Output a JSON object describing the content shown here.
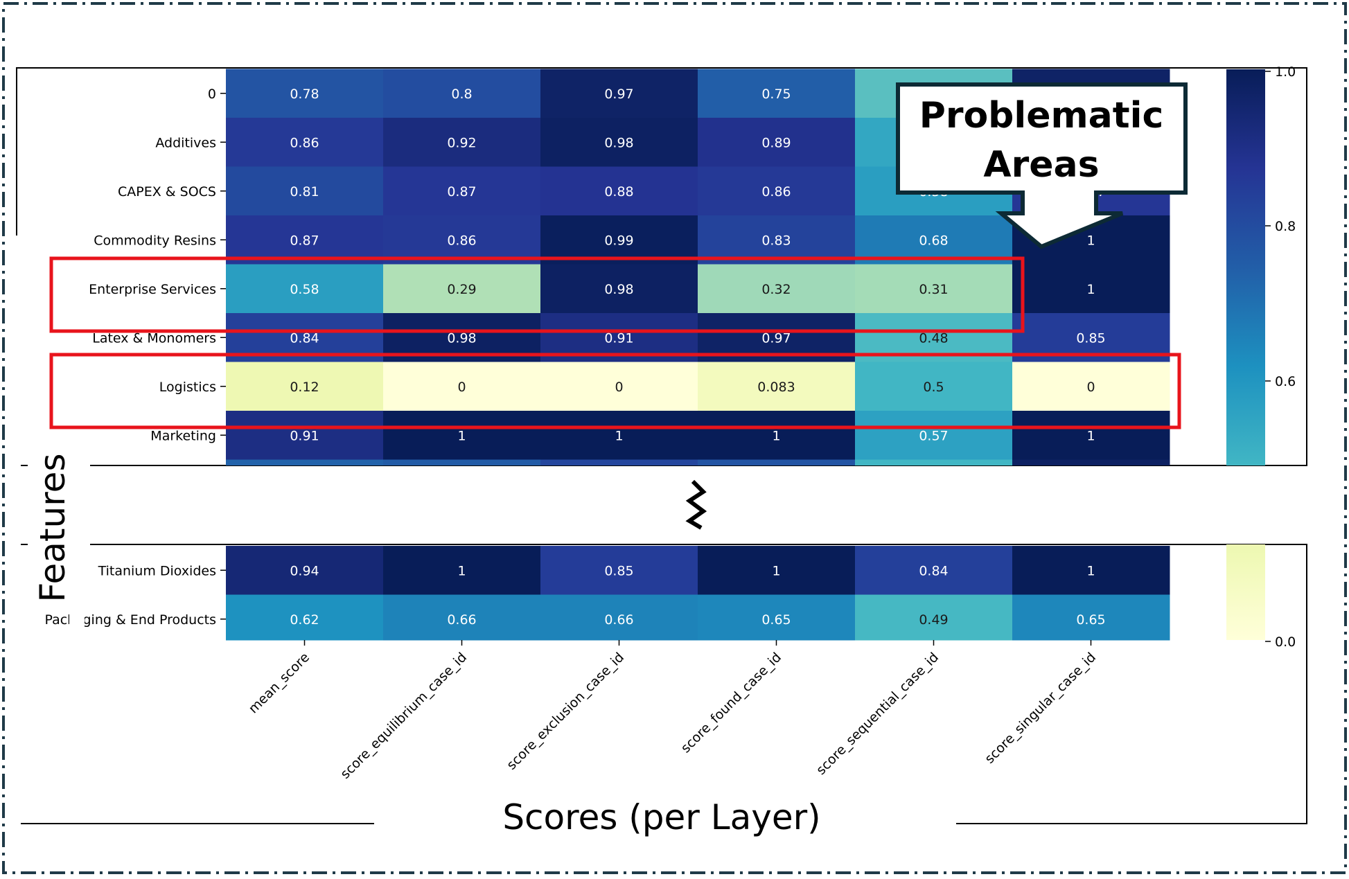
{
  "chart_data": {
    "type": "heatmap",
    "xlabel": "Scores (per Layer)",
    "ylabel": "Features",
    "columns": [
      "mean_score",
      "score_equilibrium_case_id",
      "score_exclusion_case_id",
      "score_found_case_id",
      "score_sequential_case_id",
      "score_singular_case_id"
    ],
    "rows_top": [
      {
        "label": "0",
        "values": [
          0.78,
          0.8,
          0.97,
          0.75,
          0.45,
          0.97
        ]
      },
      {
        "label": "Additives",
        "values": [
          0.86,
          0.92,
          0.98,
          0.89,
          0.55,
          0.93
        ]
      },
      {
        "label": "CAPEX & SOCS",
        "values": [
          0.81,
          0.87,
          0.88,
          0.86,
          0.58,
          0.87
        ]
      },
      {
        "label": "Commodity Resins",
        "values": [
          0.87,
          0.86,
          0.99,
          0.83,
          0.68,
          1
        ]
      },
      {
        "label": "Enterprise Services",
        "values": [
          0.58,
          0.29,
          0.98,
          0.32,
          0.31,
          1
        ]
      },
      {
        "label": "Latex & Monomers",
        "values": [
          0.84,
          0.98,
          0.91,
          0.97,
          0.48,
          0.85
        ]
      },
      {
        "label": "Logistics",
        "values": [
          0.12,
          0,
          0,
          0.083,
          0.5,
          0
        ]
      },
      {
        "label": "Marketing",
        "values": [
          0.91,
          1,
          1,
          1,
          0.57,
          1
        ]
      }
    ],
    "rows_bottom": [
      {
        "label": "Titanium Dioxides",
        "values": [
          0.94,
          1,
          0.85,
          1,
          0.84,
          1
        ]
      },
      {
        "label": "Packaging & End Products",
        "values": [
          0.62,
          0.66,
          0.66,
          0.65,
          0.49,
          0.65
        ]
      }
    ],
    "colorbar_ticks": [
      "1.0",
      "0.8",
      "0.6",
      "0.0"
    ],
    "colormap": "YlGnBu",
    "highlighted_rows": [
      "Enterprise Services",
      "Logistics"
    ],
    "highlight_color": "#e8141c",
    "callout": {
      "line1": "Problematic",
      "line2": "Areas"
    }
  }
}
